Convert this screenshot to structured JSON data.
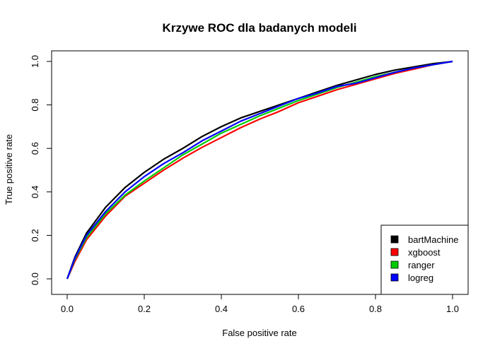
{
  "chart_data": {
    "type": "line",
    "title": "Krzywe ROC dla badanych modeli",
    "xlabel": "False positive rate",
    "ylabel": "True positive rate",
    "xlim": [
      0,
      1
    ],
    "ylim": [
      0,
      1
    ],
    "xticks": [
      "0.0",
      "0.2",
      "0.4",
      "0.6",
      "0.8",
      "1.0"
    ],
    "yticks": [
      "0.0",
      "0.2",
      "0.4",
      "0.6",
      "0.8",
      "1.0"
    ],
    "grid": false,
    "legend_position": "bottom-right",
    "x": [
      0.0,
      0.02,
      0.05,
      0.1,
      0.15,
      0.2,
      0.25,
      0.3,
      0.35,
      0.4,
      0.45,
      0.5,
      0.55,
      0.6,
      0.65,
      0.7,
      0.75,
      0.8,
      0.85,
      0.9,
      0.95,
      1.0
    ],
    "series": [
      {
        "name": "bartMachine",
        "color": "#000000",
        "values": [
          0.0,
          0.1,
          0.21,
          0.33,
          0.42,
          0.49,
          0.55,
          0.6,
          0.655,
          0.7,
          0.74,
          0.77,
          0.8,
          0.83,
          0.86,
          0.89,
          0.915,
          0.94,
          0.96,
          0.975,
          0.99,
          1.0
        ]
      },
      {
        "name": "xgboost",
        "color": "#ff0000",
        "values": [
          0.0,
          0.08,
          0.18,
          0.29,
          0.38,
          0.44,
          0.5,
          0.555,
          0.605,
          0.65,
          0.695,
          0.735,
          0.77,
          0.81,
          0.84,
          0.87,
          0.895,
          0.92,
          0.945,
          0.965,
          0.985,
          1.0
        ]
      },
      {
        "name": "ranger",
        "color": "#00cd00",
        "values": [
          0.0,
          0.09,
          0.19,
          0.3,
          0.385,
          0.45,
          0.51,
          0.57,
          0.62,
          0.67,
          0.71,
          0.75,
          0.785,
          0.82,
          0.85,
          0.88,
          0.905,
          0.93,
          0.95,
          0.97,
          0.985,
          1.0
        ]
      },
      {
        "name": "logreg",
        "color": "#0000ff",
        "values": [
          0.0,
          0.095,
          0.2,
          0.31,
          0.4,
          0.47,
          0.53,
          0.58,
          0.635,
          0.68,
          0.725,
          0.76,
          0.795,
          0.83,
          0.855,
          0.885,
          0.9,
          0.925,
          0.95,
          0.97,
          0.985,
          1.0
        ]
      }
    ]
  }
}
